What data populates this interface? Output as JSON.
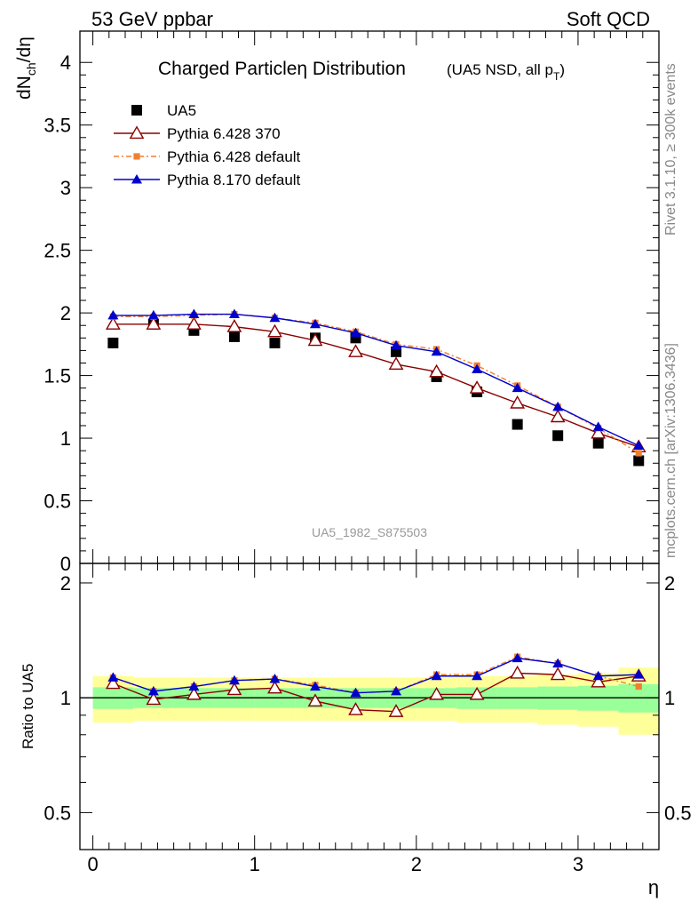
{
  "header": {
    "left": "53 GeV ppbar",
    "right": "Soft QCD"
  },
  "side_text": {
    "rivet": "Rivet 3.1.10, ≥ 300k events",
    "mcplots": "mcplots.cern.ch [arXiv:1306.3436]"
  },
  "chart_data": {
    "type": "line",
    "title": "Charged Particleη Distribution",
    "subtitle": "(UA5 NSD, all p",
    "subtitle_sub": "T",
    "subtitle_end": ")",
    "watermark": "UA5_1982_S875503",
    "xlabel": "η",
    "ylabel_main": "dN",
    "ylabel_sub": "ch",
    "ylabel_end": "/dη",
    "ylabel_ratio": "Ratio to UA5",
    "xlim": [
      -0.08,
      3.5
    ],
    "ylim_main": [
      0,
      4.25
    ],
    "ylim_ratio": [
      0.4,
      2.25
    ],
    "x_ticks": [
      "0",
      "1",
      "2",
      "3"
    ],
    "y_ticks_main": [
      "0",
      "0.5",
      "1",
      "1.5",
      "2",
      "2.5",
      "3",
      "3.5",
      "4"
    ],
    "y_ticks_ratio": [
      "0.5",
      "1",
      "2"
    ],
    "x": [
      0.125,
      0.375,
      0.625,
      0.875,
      1.125,
      1.375,
      1.625,
      1.875,
      2.125,
      2.375,
      2.625,
      2.875,
      3.125,
      3.375
    ],
    "bin_edges": [
      0,
      0.25,
      0.5,
      0.75,
      1.0,
      1.25,
      1.5,
      1.75,
      2.0,
      2.25,
      2.5,
      2.75,
      3.0,
      3.25,
      3.5
    ],
    "ratio_band_green": [
      0.065,
      0.06,
      0.06,
      0.06,
      0.06,
      0.06,
      0.06,
      0.06,
      0.06,
      0.065,
      0.065,
      0.07,
      0.075,
      0.085
    ],
    "ratio_band_yellow": [
      0.14,
      0.13,
      0.13,
      0.13,
      0.13,
      0.13,
      0.13,
      0.13,
      0.13,
      0.14,
      0.14,
      0.15,
      0.16,
      0.2
    ],
    "legend_position": "top-left",
    "grid": false,
    "series": [
      {
        "name": "UA5",
        "color": "#000000",
        "marker": "square",
        "values": [
          1.76,
          1.91,
          1.86,
          1.81,
          1.76,
          1.8,
          1.8,
          1.69,
          1.49,
          1.37,
          1.11,
          1.02,
          0.96,
          0.82
        ],
        "ratio": [
          1.0,
          1.0,
          1.0,
          1.0,
          1.0,
          1.0,
          1.0,
          1.0,
          1.0,
          1.0,
          1.0,
          1.0,
          1.0,
          1.0
        ]
      },
      {
        "name": "Pythia 6.428 370",
        "color": "#8b0000",
        "marker": "open-triangle",
        "values": [
          1.91,
          1.91,
          1.91,
          1.89,
          1.85,
          1.78,
          1.69,
          1.59,
          1.53,
          1.4,
          1.28,
          1.17,
          1.04,
          0.93
        ],
        "ratio": [
          1.09,
          0.99,
          1.02,
          1.05,
          1.06,
          0.98,
          0.93,
          0.92,
          1.02,
          1.02,
          1.16,
          1.15,
          1.1,
          1.14
        ]
      },
      {
        "name": "Pythia 6.428 default",
        "color": "#f08030",
        "marker": "filled-square",
        "values": [
          1.97,
          1.97,
          1.98,
          1.99,
          1.96,
          1.92,
          1.85,
          1.75,
          1.71,
          1.58,
          1.42,
          1.25,
          1.08,
          0.88
        ],
        "ratio": [
          1.13,
          1.04,
          1.07,
          1.11,
          1.12,
          1.08,
          1.03,
          1.04,
          1.15,
          1.15,
          1.28,
          1.23,
          1.14,
          1.07
        ]
      },
      {
        "name": "Pythia 8.170 default",
        "color": "#0000cc",
        "marker": "filled-triangle",
        "values": [
          1.98,
          1.98,
          1.99,
          1.99,
          1.96,
          1.91,
          1.84,
          1.74,
          1.69,
          1.55,
          1.4,
          1.25,
          1.09,
          0.94
        ],
        "ratio": [
          1.13,
          1.04,
          1.07,
          1.11,
          1.12,
          1.07,
          1.03,
          1.04,
          1.14,
          1.14,
          1.27,
          1.23,
          1.14,
          1.15
        ]
      }
    ]
  }
}
